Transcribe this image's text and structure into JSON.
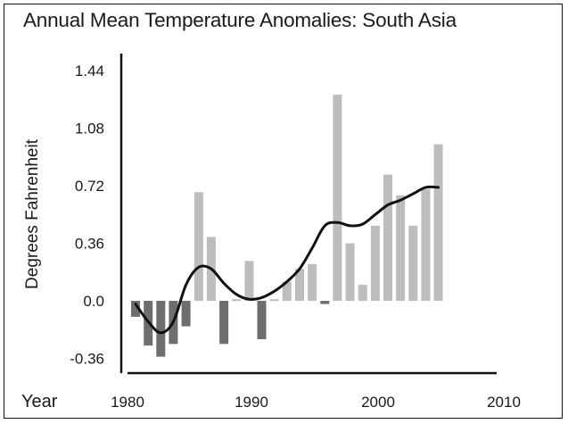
{
  "chart_data": {
    "type": "bar",
    "title": "Annual Mean Temperature Anomalies: South Asia",
    "ylabel": "Degrees Fahrenheit",
    "xlabel": "Year",
    "ylim": [
      -0.36,
      1.44
    ],
    "yticks": [
      "1.44",
      "1.08",
      "0.72",
      "0.36",
      "0.0",
      "-0.36"
    ],
    "xlim": [
      1980,
      2010
    ],
    "xticks": [
      "1980",
      "1990",
      "2000",
      "2010"
    ],
    "grid": false,
    "legend": "none",
    "series": [
      {
        "values": [
          {
            "x": 1980,
            "y": -0.1
          },
          {
            "x": 1981,
            "y": -0.28
          },
          {
            "x": 1982,
            "y": -0.35
          },
          {
            "x": 1983,
            "y": -0.27
          },
          {
            "x": 1984,
            "y": -0.16
          },
          {
            "x": 1985,
            "y": 0.68
          },
          {
            "x": 1986,
            "y": 0.4
          },
          {
            "x": 1987,
            "y": -0.27
          },
          {
            "x": 1988,
            "y": 0.01
          },
          {
            "x": 1989,
            "y": 0.25
          },
          {
            "x": 1990,
            "y": -0.24
          },
          {
            "x": 1991,
            "y": 0.01
          },
          {
            "x": 1992,
            "y": 0.12
          },
          {
            "x": 1993,
            "y": 0.2
          },
          {
            "x": 1994,
            "y": 0.23
          },
          {
            "x": 1995,
            "y": -0.02
          },
          {
            "x": 1996,
            "y": 1.29
          },
          {
            "x": 1997,
            "y": 0.36
          },
          {
            "x": 1998,
            "y": 0.1
          },
          {
            "x": 1999,
            "y": 0.47
          },
          {
            "x": 2000,
            "y": 0.79
          },
          {
            "x": 2001,
            "y": 0.66
          },
          {
            "x": 2002,
            "y": 0.47
          },
          {
            "x": 2003,
            "y": 0.7
          },
          {
            "x": 2004,
            "y": 0.98
          }
        ]
      },
      {
        "type": "line",
        "values": [
          {
            "x": 1980,
            "y": -0.02
          },
          {
            "x": 1981,
            "y": -0.13
          },
          {
            "x": 1982,
            "y": -0.2
          },
          {
            "x": 1983,
            "y": -0.13
          },
          {
            "x": 1984,
            "y": 0.1
          },
          {
            "x": 1985,
            "y": 0.21
          },
          {
            "x": 1986,
            "y": 0.2
          },
          {
            "x": 1987,
            "y": 0.11
          },
          {
            "x": 1988,
            "y": 0.04
          },
          {
            "x": 1989,
            "y": 0.01
          },
          {
            "x": 1990,
            "y": 0.02
          },
          {
            "x": 1991,
            "y": 0.06
          },
          {
            "x": 1992,
            "y": 0.12
          },
          {
            "x": 1993,
            "y": 0.2
          },
          {
            "x": 1994,
            "y": 0.33
          },
          {
            "x": 1995,
            "y": 0.47
          },
          {
            "x": 1996,
            "y": 0.49
          },
          {
            "x": 1997,
            "y": 0.47
          },
          {
            "x": 1998,
            "y": 0.48
          },
          {
            "x": 1999,
            "y": 0.54
          },
          {
            "x": 2000,
            "y": 0.6
          },
          {
            "x": 2001,
            "y": 0.63
          },
          {
            "x": 2002,
            "y": 0.67
          },
          {
            "x": 2003,
            "y": 0.71
          },
          {
            "x": 2004,
            "y": 0.71
          }
        ]
      }
    ],
    "colors": {
      "positive_bar": "#bdbdbd",
      "negative_bar": "#6e6e6e",
      "line": "#111111",
      "axis": "#111111",
      "text": "#1a1a1a"
    }
  }
}
